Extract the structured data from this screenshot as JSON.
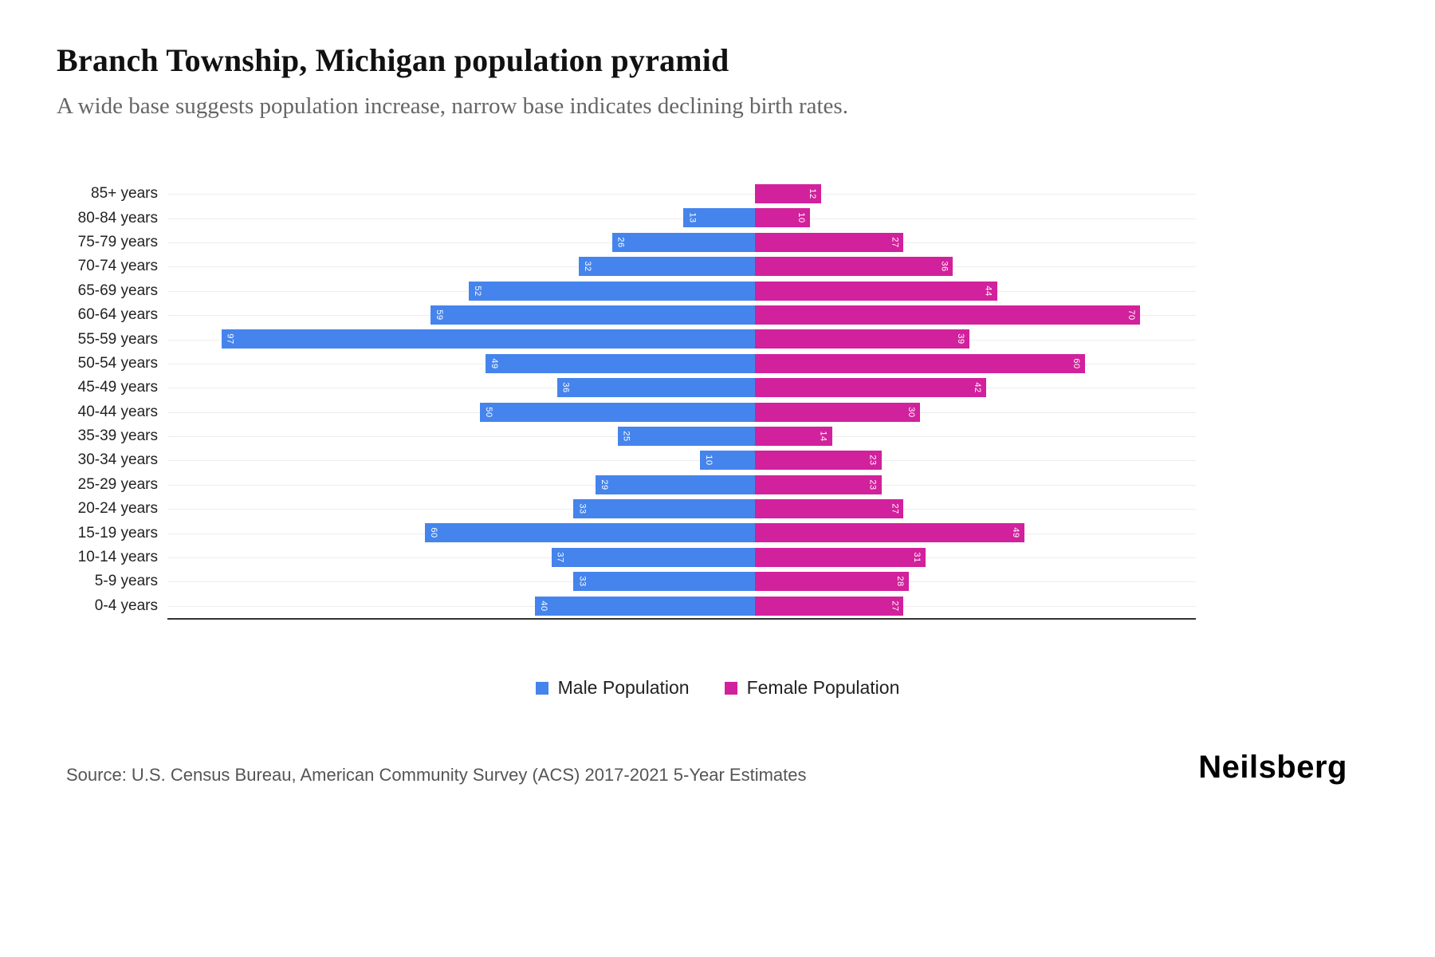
{
  "header": {
    "title": "Branch Township, Michigan population pyramid",
    "subtitle": "A wide base suggests population increase, narrow base indicates declining birth rates."
  },
  "chart_data": {
    "type": "bar",
    "variant": "population-pyramid",
    "orientation": "horizontal",
    "title": "Branch Township, Michigan population pyramid",
    "categories": [
      "85+ years",
      "80-84 years",
      "75-79 years",
      "70-74 years",
      "65-69 years",
      "60-64 years",
      "55-59 years",
      "50-54 years",
      "45-49 years",
      "40-44 years",
      "35-39 years",
      "30-34 years",
      "25-29 years",
      "20-24 years",
      "15-19 years",
      "10-14 years",
      "5-9 years",
      "0-4 years"
    ],
    "series": [
      {
        "name": "Male Population",
        "side": "left",
        "color": "#4584ec",
        "values": [
          0,
          13,
          26,
          32,
          52,
          59,
          97,
          49,
          36,
          50,
          25,
          10,
          29,
          33,
          60,
          37,
          33,
          40
        ]
      },
      {
        "name": "Female Population",
        "side": "right",
        "color": "#d2219c",
        "values": [
          12,
          10,
          27,
          36,
          44,
          70,
          39,
          60,
          42,
          30,
          14,
          23,
          23,
          27,
          49,
          31,
          28,
          27
        ]
      }
    ],
    "xlim_left": [
      0,
      106
    ],
    "xlim_right": [
      0,
      80
    ],
    "grid": "horizontal",
    "legend_position": "bottom",
    "value_labels": "inside-bar-ends-rotated"
  },
  "legend": {
    "male_label": "Male Population",
    "female_label": "Female Population"
  },
  "footer": {
    "source": "Source: U.S. Census Bureau, American Community Survey (ACS) 2017-2021 5-Year Estimates",
    "logo": "Neilsberg"
  },
  "colors": {
    "male": "#4584ec",
    "female": "#d2219c",
    "gridline": "#ededed",
    "axis": "#333333"
  }
}
